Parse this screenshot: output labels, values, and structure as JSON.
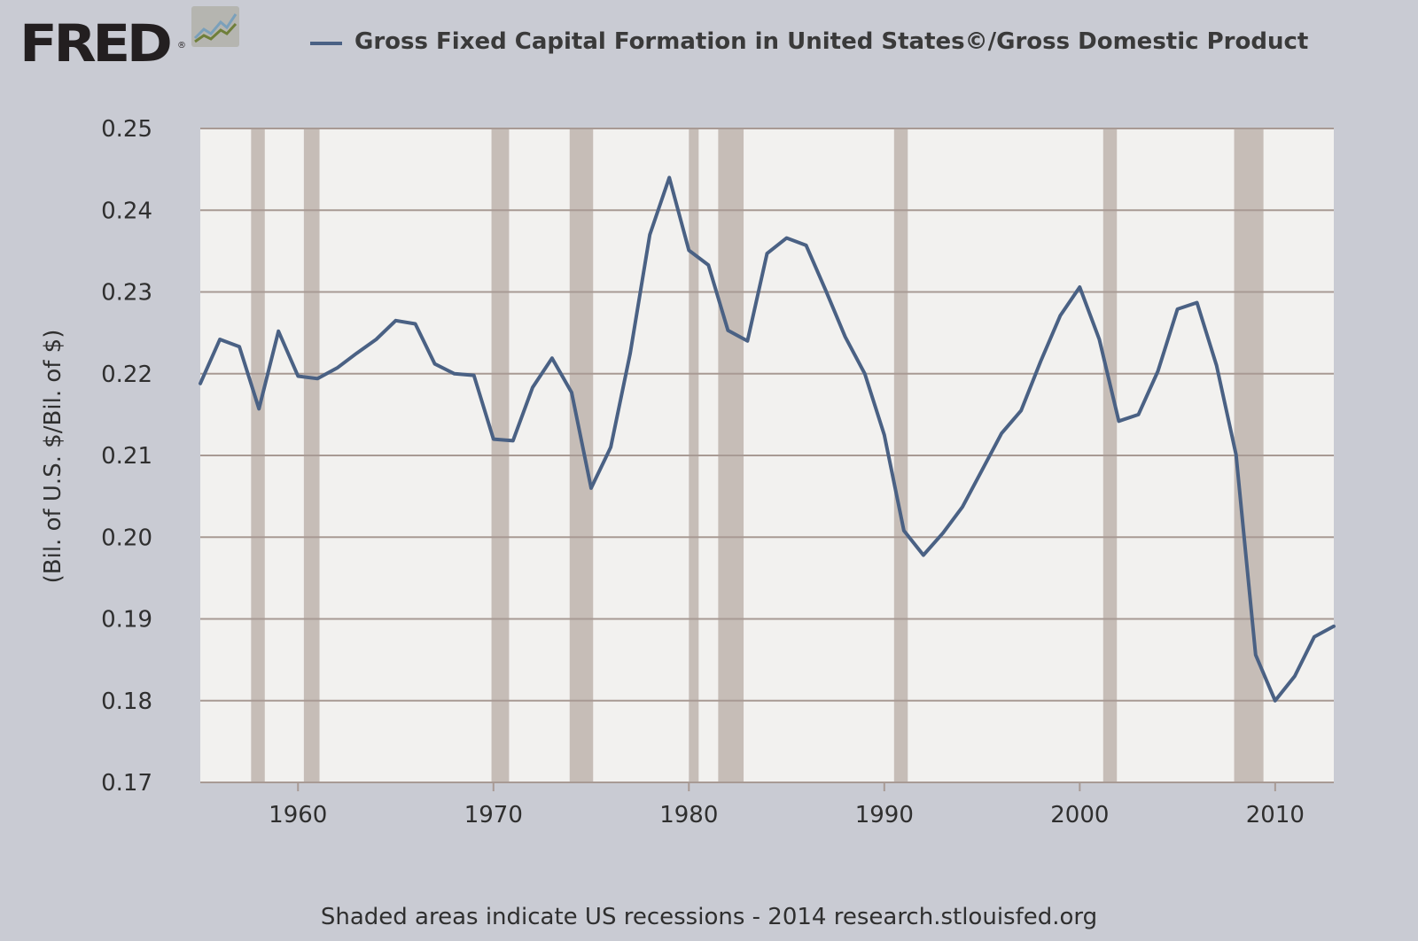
{
  "brand": {
    "logo_text": "FRED",
    "logo_mark": "®",
    "icon": "line-chart-icon"
  },
  "footer_text": "Shaded areas indicate US recessions - 2014 research.stlouisfed.org",
  "colors": {
    "background": "#c9cbd3",
    "plot_bg": "#f2f1ef",
    "series": "#4a6184",
    "recession": "#c6bdb7",
    "grid": "#a89a94"
  },
  "chart_data": {
    "type": "line",
    "title": "",
    "xlabel": "",
    "ylabel": "(Bil. of U.S. $/Bil. of $)",
    "xlim": [
      1955,
      2013
    ],
    "ylim": [
      0.17,
      0.25
    ],
    "grid": true,
    "legend_position": "top",
    "x_ticks": [
      "1960",
      "1970",
      "1980",
      "1990",
      "2000",
      "2010"
    ],
    "y_ticks": [
      "0.25",
      "0.24",
      "0.23",
      "0.22",
      "0.21",
      "0.20",
      "0.19",
      "0.18",
      "0.17"
    ],
    "recessions": [
      [
        1957.6,
        1958.3
      ],
      [
        1960.3,
        1961.1
      ],
      [
        1969.9,
        1970.8
      ],
      [
        1973.9,
        1975.1
      ],
      [
        1980.0,
        1980.5
      ],
      [
        1981.5,
        1982.8
      ],
      [
        1990.5,
        1991.2
      ],
      [
        2001.2,
        2001.9
      ],
      [
        2007.9,
        2009.4
      ]
    ],
    "series": [
      {
        "name": "Gross Fixed Capital Formation in United States©/Gross Domestic Product",
        "x": [
          1955,
          1956,
          1957,
          1958,
          1959,
          1960,
          1961,
          1962,
          1963,
          1964,
          1965,
          1966,
          1967,
          1968,
          1969,
          1970,
          1971,
          1972,
          1973,
          1974,
          1975,
          1976,
          1977,
          1978,
          1979,
          1980,
          1981,
          1982,
          1983,
          1984,
          1985,
          1986,
          1987,
          1988,
          1989,
          1990,
          1991,
          1992,
          1993,
          1994,
          1995,
          1996,
          1997,
          1998,
          1999,
          2000,
          2001,
          2002,
          2003,
          2004,
          2005,
          2006,
          2007,
          2008,
          2009,
          2010,
          2011,
          2012,
          2013
        ],
        "values": [
          0.2188,
          0.2242,
          0.2233,
          0.2157,
          0.2252,
          0.2197,
          0.2194,
          0.2207,
          0.2225,
          0.2242,
          0.2265,
          0.2261,
          0.2212,
          0.22,
          0.2198,
          0.212,
          0.2118,
          0.2183,
          0.2219,
          0.2177,
          0.206,
          0.211,
          0.2225,
          0.237,
          0.244,
          0.2351,
          0.2333,
          0.2253,
          0.224,
          0.2347,
          0.2366,
          0.2357,
          0.2302,
          0.2245,
          0.22,
          0.2125,
          0.2008,
          0.1978,
          0.2005,
          0.2037,
          0.2082,
          0.2127,
          0.2155,
          0.2215,
          0.2271,
          0.2306,
          0.2242,
          0.2142,
          0.215,
          0.2203,
          0.2279,
          0.2287,
          0.221,
          0.2101,
          0.1856,
          0.18,
          0.183,
          0.1878,
          0.1891
        ]
      }
    ]
  }
}
